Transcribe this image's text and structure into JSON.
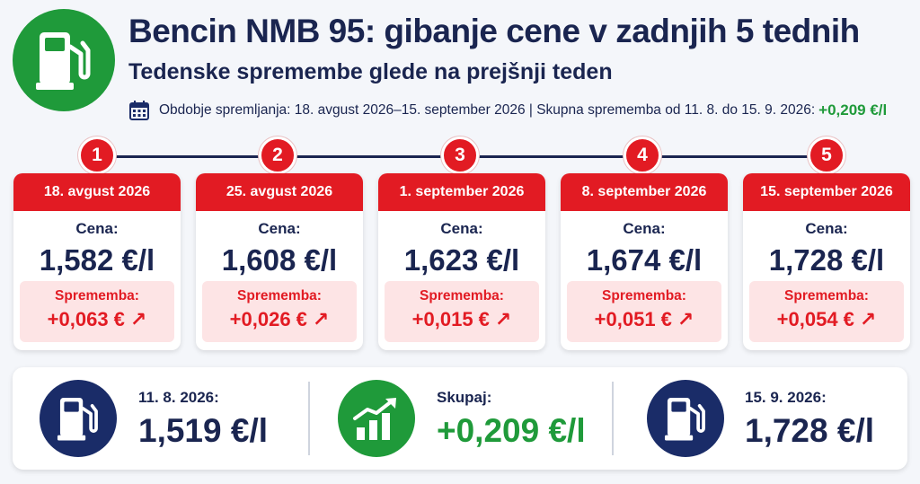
{
  "header": {
    "icon": "fuel-pump-icon",
    "title": "Bencin NMB 95: gibanje cene v zadnjih 5 tednih",
    "subtitle": "Tedenske spremembe glede na prejšnji teden",
    "period_text": "Obdobje spremljanja: 18. avgust 2026–15. september 2026 | Skupna sprememba od 11. 8. do 15. 9. 2026:",
    "total_change": "+0,209 €/l"
  },
  "colors": {
    "accent_red": "#e21b23",
    "accent_green": "#1f9a3a",
    "navy": "#1a2550",
    "change_bg": "#fde4e5"
  },
  "weeks": [
    {
      "number": "1",
      "date": "18. avgust 2026",
      "price_label": "Cena:",
      "price": "1,582 €/l",
      "change_label": "Sprememba:",
      "change": "+0,063 €",
      "arrow": "↗"
    },
    {
      "number": "2",
      "date": "25. avgust 2026",
      "price_label": "Cena:",
      "price": "1,608 €/l",
      "change_label": "Sprememba:",
      "change": "+0,026 €",
      "arrow": "↗"
    },
    {
      "number": "3",
      "date": "1. september 2026",
      "price_label": "Cena:",
      "price": "1,623 €/l",
      "change_label": "Sprememba:",
      "change": "+0,015 €",
      "arrow": "↗"
    },
    {
      "number": "4",
      "date": "8. september 2026",
      "price_label": "Cena:",
      "price": "1,674 €/l",
      "change_label": "Sprememba:",
      "change": "+0,051 €",
      "arrow": "↗"
    },
    {
      "number": "5",
      "date": "15. september 2026",
      "price_label": "Cena:",
      "price": "1,728 €/l",
      "change_label": "Sprememba:",
      "change": "+0,054 €",
      "arrow": "↗"
    }
  ],
  "summary": {
    "start": {
      "icon": "fuel-pump-icon",
      "label": "11. 8. 2026:",
      "value": "1,519 €/l"
    },
    "total": {
      "icon": "growth-chart-icon",
      "label": "Skupaj:",
      "value": "+0,209 €/l"
    },
    "end": {
      "icon": "fuel-pump-icon",
      "label": "15. 9. 2026:",
      "value": "1,728 €/l"
    }
  }
}
